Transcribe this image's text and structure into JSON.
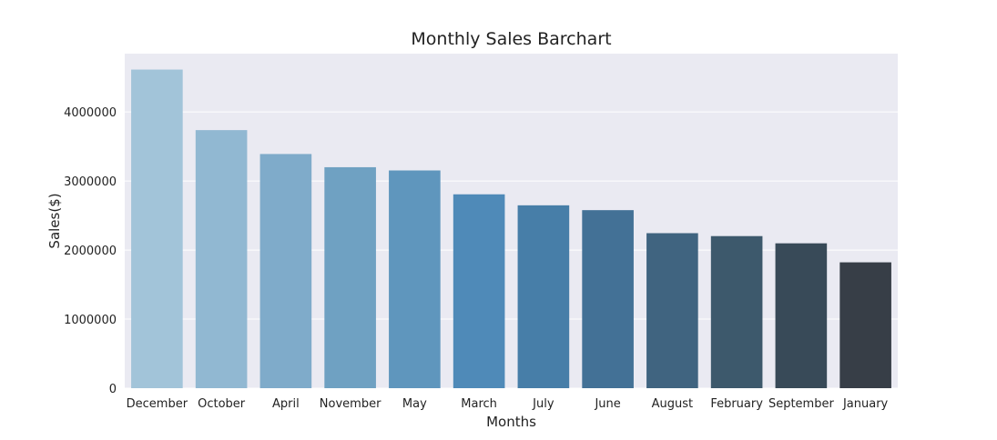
{
  "chart_data": {
    "type": "bar",
    "title": "Monthly Sales Barchart",
    "xlabel": "Months",
    "ylabel": "Sales($)",
    "categories": [
      "December",
      "October",
      "April",
      "November",
      "May",
      "March",
      "July",
      "June",
      "August",
      "February",
      "September",
      "January"
    ],
    "values": [
      4613443,
      3736727,
      3390670,
      3199603,
      3152607,
      2807100,
      2647776,
      2577802,
      2244468,
      2202022,
      2097560,
      1822257
    ],
    "ylim": [
      0,
      4844115
    ],
    "yticks": [
      0,
      1000000,
      2000000,
      3000000,
      4000000
    ],
    "ytick_labels": [
      "0",
      "1000000",
      "2000000",
      "3000000",
      "4000000"
    ],
    "grid": "horizontal",
    "background": "#eaeaf2",
    "colors": [
      "#a2c4d9",
      "#91b8d2",
      "#7fabca",
      "#6fa1c2",
      "#5f96bd",
      "#4f8ab8",
      "#477ea8",
      "#437196",
      "#406480",
      "#3d596c",
      "#384a58",
      "#373e47"
    ]
  }
}
